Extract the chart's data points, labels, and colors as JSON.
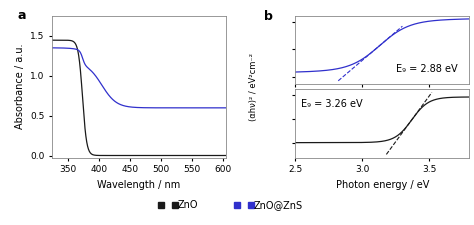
{
  "panel_a": {
    "ZnO_color": "#1a1a1a",
    "ZnO_ZnS_color": "#3030cc",
    "xlabel": "Wavelength / nm",
    "ylabel": "Absorbance / a.u.",
    "xlim": [
      325,
      605
    ],
    "ylim": [
      -0.02,
      1.75
    ],
    "yticks": [
      0.0,
      0.5,
      1.0,
      1.5
    ],
    "xticks": [
      350,
      400,
      450,
      500,
      550,
      600
    ]
  },
  "panel_b_top": {
    "color": "#3030cc",
    "annotation": "E₉ = 2.88 eV",
    "xlim": [
      2.5,
      3.8
    ]
  },
  "panel_b_bottom": {
    "color": "#1a1a1a",
    "annotation": "E₉ = 3.26 eV",
    "xlim": [
      2.5,
      3.8
    ]
  },
  "panel_b_shared": {
    "xlabel": "Photon energy / eV",
    "ylabel": "(αhν)² / eV²cm⁻²",
    "xticks": [
      2.5,
      3.0,
      3.5
    ],
    "xlim": [
      2.5,
      3.8
    ]
  },
  "legend_ZnO": "ZnO",
  "legend_ZnO_ZnS": "ZnO@ZnS",
  "label_a": "a",
  "label_b": "b"
}
